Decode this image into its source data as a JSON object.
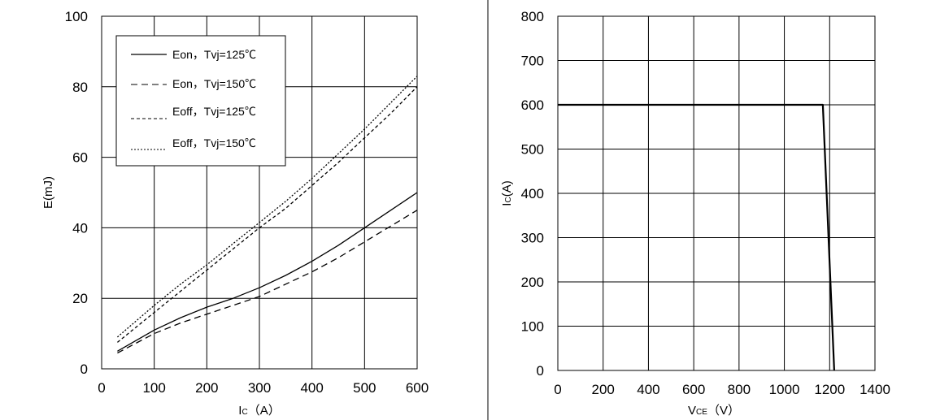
{
  "chart_data": [
    {
      "type": "line",
      "title": "",
      "xlabel": "I",
      "xlabel_sub": "C",
      "xlabel_unit": "（A）",
      "ylabel": "E(mJ)",
      "xlim": [
        0,
        600
      ],
      "ylim": [
        0,
        100
      ],
      "xticks": [
        "0",
        "100",
        "200",
        "300",
        "400",
        "500",
        "600"
      ],
      "yticks": [
        "0",
        "20",
        "40",
        "60",
        "80",
        "100"
      ],
      "grid": true,
      "legend_position": "top-left",
      "series": [
        {
          "name": "Eon，Tvj=125℃",
          "dash": "solid",
          "x": [
            30,
            100,
            150,
            200,
            250,
            300,
            350,
            400,
            450,
            500,
            550,
            600
          ],
          "y": [
            5,
            11,
            14.5,
            17.5,
            20,
            23,
            26.5,
            30.5,
            35,
            40,
            45,
            50
          ]
        },
        {
          "name": "Eon，Tvj=150℃",
          "dash": "long-dash",
          "x": [
            30,
            100,
            150,
            200,
            250,
            300,
            350,
            400,
            450,
            500,
            550,
            600
          ],
          "y": [
            4.5,
            10,
            13,
            15.5,
            18,
            20.5,
            24,
            27.5,
            31.5,
            36,
            40.5,
            45
          ]
        },
        {
          "name": "Eoff，Tvj=125℃",
          "dash": "short-dash",
          "x": [
            30,
            100,
            150,
            200,
            250,
            300,
            350,
            400,
            450,
            500,
            550,
            600
          ],
          "y": [
            7.5,
            16,
            22,
            28,
            34,
            40,
            45.5,
            52,
            58.5,
            65.5,
            72.5,
            80
          ]
        },
        {
          "name": "Eoff，Tvj=150℃",
          "dash": "dotted",
          "x": [
            30,
            100,
            150,
            200,
            250,
            300,
            350,
            400,
            450,
            500,
            550,
            600
          ],
          "y": [
            9,
            18,
            24,
            29.5,
            35.5,
            41.5,
            47.5,
            54,
            61,
            68,
            75.5,
            83
          ]
        }
      ]
    },
    {
      "type": "line",
      "title": "",
      "xlabel": "V",
      "xlabel_sub": "CE",
      "xlabel_unit": "（V）",
      "ylabel": "I",
      "ylabel_sub": "C",
      "ylabel_unit": "(A)",
      "xlim": [
        0,
        1400
      ],
      "ylim": [
        0,
        800
      ],
      "xticks": [
        "0",
        "200",
        "400",
        "600",
        "800",
        "1000",
        "1200",
        "1400"
      ],
      "yticks": [
        "0",
        "100",
        "200",
        "300",
        "400",
        "500",
        "600",
        "700",
        "800"
      ],
      "grid": true,
      "series": [
        {
          "dash": "solid",
          "x": [
            0,
            1170,
            1220
          ],
          "y": [
            600,
            600,
            0
          ]
        }
      ]
    }
  ]
}
